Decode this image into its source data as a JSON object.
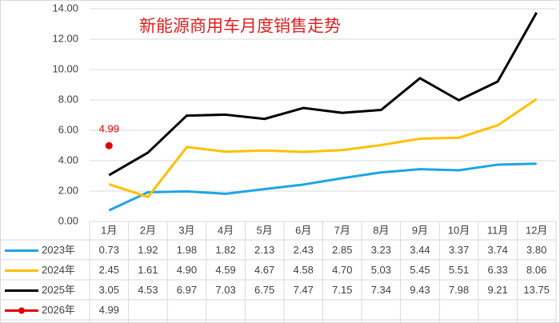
{
  "chart_data": {
    "type": "line",
    "title": "新能源商用车月度销售走势",
    "categories": [
      "1月",
      "2月",
      "3月",
      "4月",
      "5月",
      "6月",
      "7月",
      "8月",
      "9月",
      "10月",
      "11月",
      "12月"
    ],
    "series": [
      {
        "name": "2023年",
        "color": "#1ea5e3",
        "values": [
          0.73,
          1.92,
          1.98,
          1.82,
          2.13,
          2.43,
          2.85,
          3.23,
          3.44,
          3.37,
          3.74,
          3.8
        ],
        "value_labels": [
          "0.73",
          "1.92",
          "1.98",
          "1.82",
          "2.13",
          "2.43",
          "2.85",
          "3.23",
          "3.44",
          "3.37",
          "3.74",
          "3.80"
        ]
      },
      {
        "name": "2024年",
        "color": "#ffc000",
        "values": [
          2.45,
          1.61,
          4.9,
          4.59,
          4.67,
          4.58,
          4.7,
          5.03,
          5.45,
          5.51,
          6.33,
          8.06
        ],
        "value_labels": [
          "2.45",
          "1.61",
          "4.90",
          "4.59",
          "4.67",
          "4.58",
          "4.70",
          "5.03",
          "5.45",
          "5.51",
          "6.33",
          "8.06"
        ]
      },
      {
        "name": "2025年",
        "color": "#000000",
        "values": [
          3.05,
          4.53,
          6.97,
          7.03,
          6.75,
          7.47,
          7.15,
          7.34,
          9.43,
          7.98,
          9.21,
          13.75
        ],
        "value_labels": [
          "3.05",
          "4.53",
          "6.97",
          "7.03",
          "6.75",
          "7.47",
          "7.15",
          "7.34",
          "9.43",
          "7.98",
          "9.21",
          "13.75"
        ]
      },
      {
        "name": "2026年",
        "color": "#e00000",
        "markers": true,
        "data_labels": true,
        "values": [
          4.99,
          null,
          null,
          null,
          null,
          null,
          null,
          null,
          null,
          null,
          null,
          null
        ]
      }
    ],
    "ylim": [
      0,
      14
    ],
    "yticks": [
      {
        "value": 0,
        "label": "0.00"
      },
      {
        "value": 2,
        "label": "2.00"
      },
      {
        "value": 4,
        "label": "4.00"
      },
      {
        "value": 6,
        "label": "6.00"
      },
      {
        "value": 8,
        "label": "8.00"
      },
      {
        "value": 10,
        "label": "10.00"
      },
      {
        "value": 12,
        "label": "12.00"
      },
      {
        "value": 14,
        "label": "14.00"
      }
    ],
    "grid": true
  }
}
